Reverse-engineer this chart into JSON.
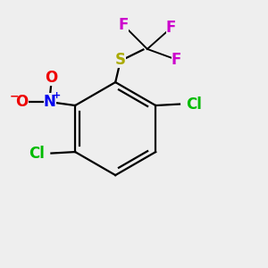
{
  "background_color": "#eeeeee",
  "atom_colors": {
    "C": "#000000",
    "Cl": "#00bb00",
    "S": "#aaaa00",
    "F": "#cc00cc",
    "N": "#0000ee",
    "O": "#ee0000"
  },
  "bond_width": 1.6,
  "font_size": 12
}
